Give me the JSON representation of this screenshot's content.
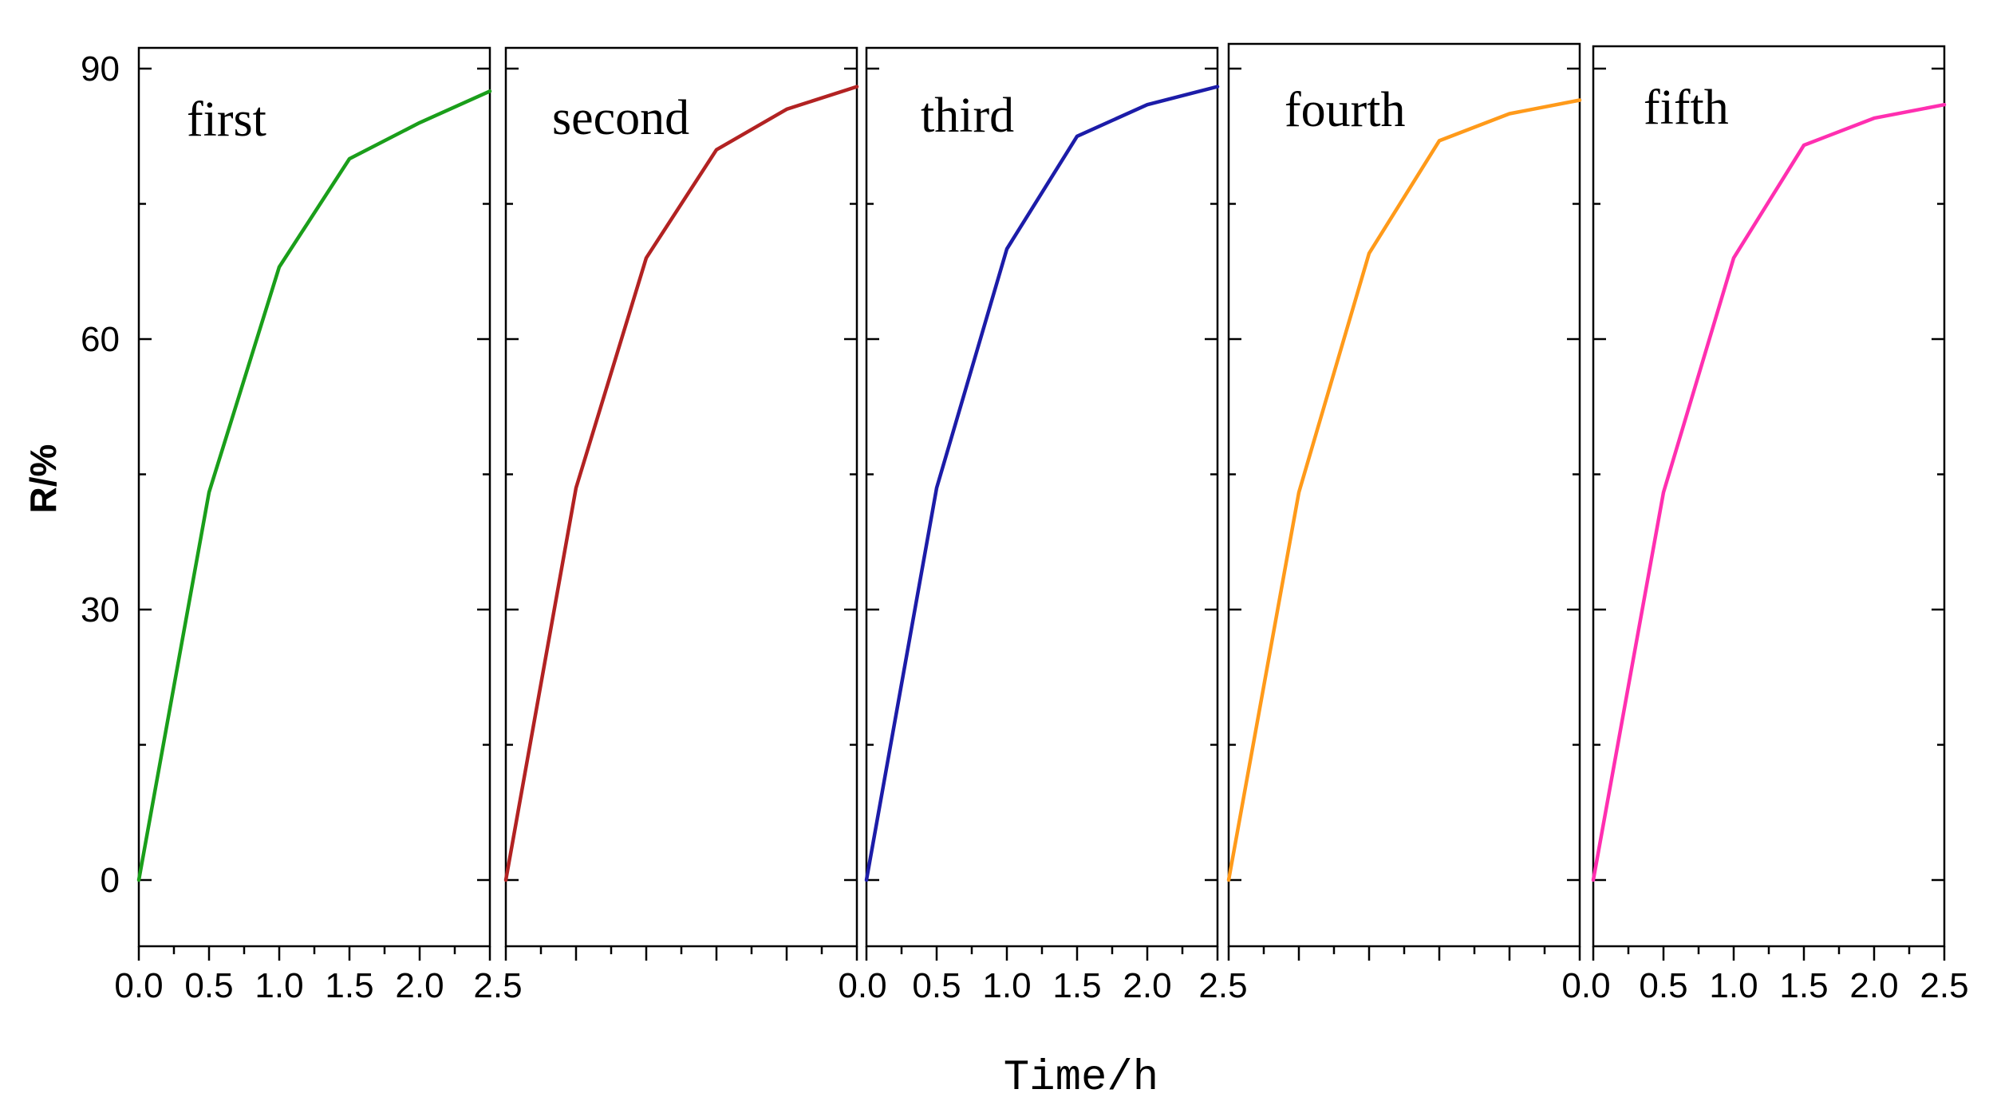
{
  "chart_data": {
    "type": "line",
    "xlabel": "Time/h",
    "ylabel": "R/%",
    "ylim": [
      -7.5,
      92
    ],
    "xlim": [
      0,
      2.5
    ],
    "y_ticks": [
      "0",
      "30",
      "60",
      "90"
    ],
    "x_ticks": [
      "0.0",
      "0.5",
      "1.0",
      "1.5",
      "2.0",
      "2.5"
    ],
    "x_tick_label_panels": [
      0,
      2,
      4
    ],
    "x_tick_label_text": {
      "panel_0": [
        "0.0",
        "0.5",
        "1.0",
        "1.5",
        "2.0",
        "2.5"
      ],
      "between_0_1": "2.5",
      "panel_2": [
        "0.0",
        "0.5",
        "1.0",
        "1.5",
        "2.0",
        "2.5"
      ],
      "between_2_3": "2.5",
      "between_3_4": "0.0",
      "panel_4": [
        "0.5",
        "1.0",
        "1.5",
        "2.0",
        "2.5"
      ]
    },
    "grid": false,
    "x": [
      0.0,
      0.5,
      1.0,
      1.5,
      2.0,
      2.5
    ],
    "panels": [
      {
        "label": "first",
        "color": "#1a9e1a",
        "values": [
          0,
          43,
          68,
          80,
          84,
          87.5
        ]
      },
      {
        "label": "second",
        "color": "#b22222",
        "values": [
          0,
          43.5,
          69,
          81,
          85.5,
          88
        ]
      },
      {
        "label": "third",
        "color": "#1c1ca8",
        "values": [
          0,
          43.5,
          70,
          82.5,
          86,
          88
        ]
      },
      {
        "label": "fourth",
        "color": "#ff9a1a",
        "values": [
          0,
          43,
          69.5,
          82,
          85,
          86.5
        ]
      },
      {
        "label": "fifth",
        "color": "#ff2fb0",
        "values": [
          0,
          43,
          69,
          81.5,
          84.5,
          86
        ]
      }
    ]
  }
}
